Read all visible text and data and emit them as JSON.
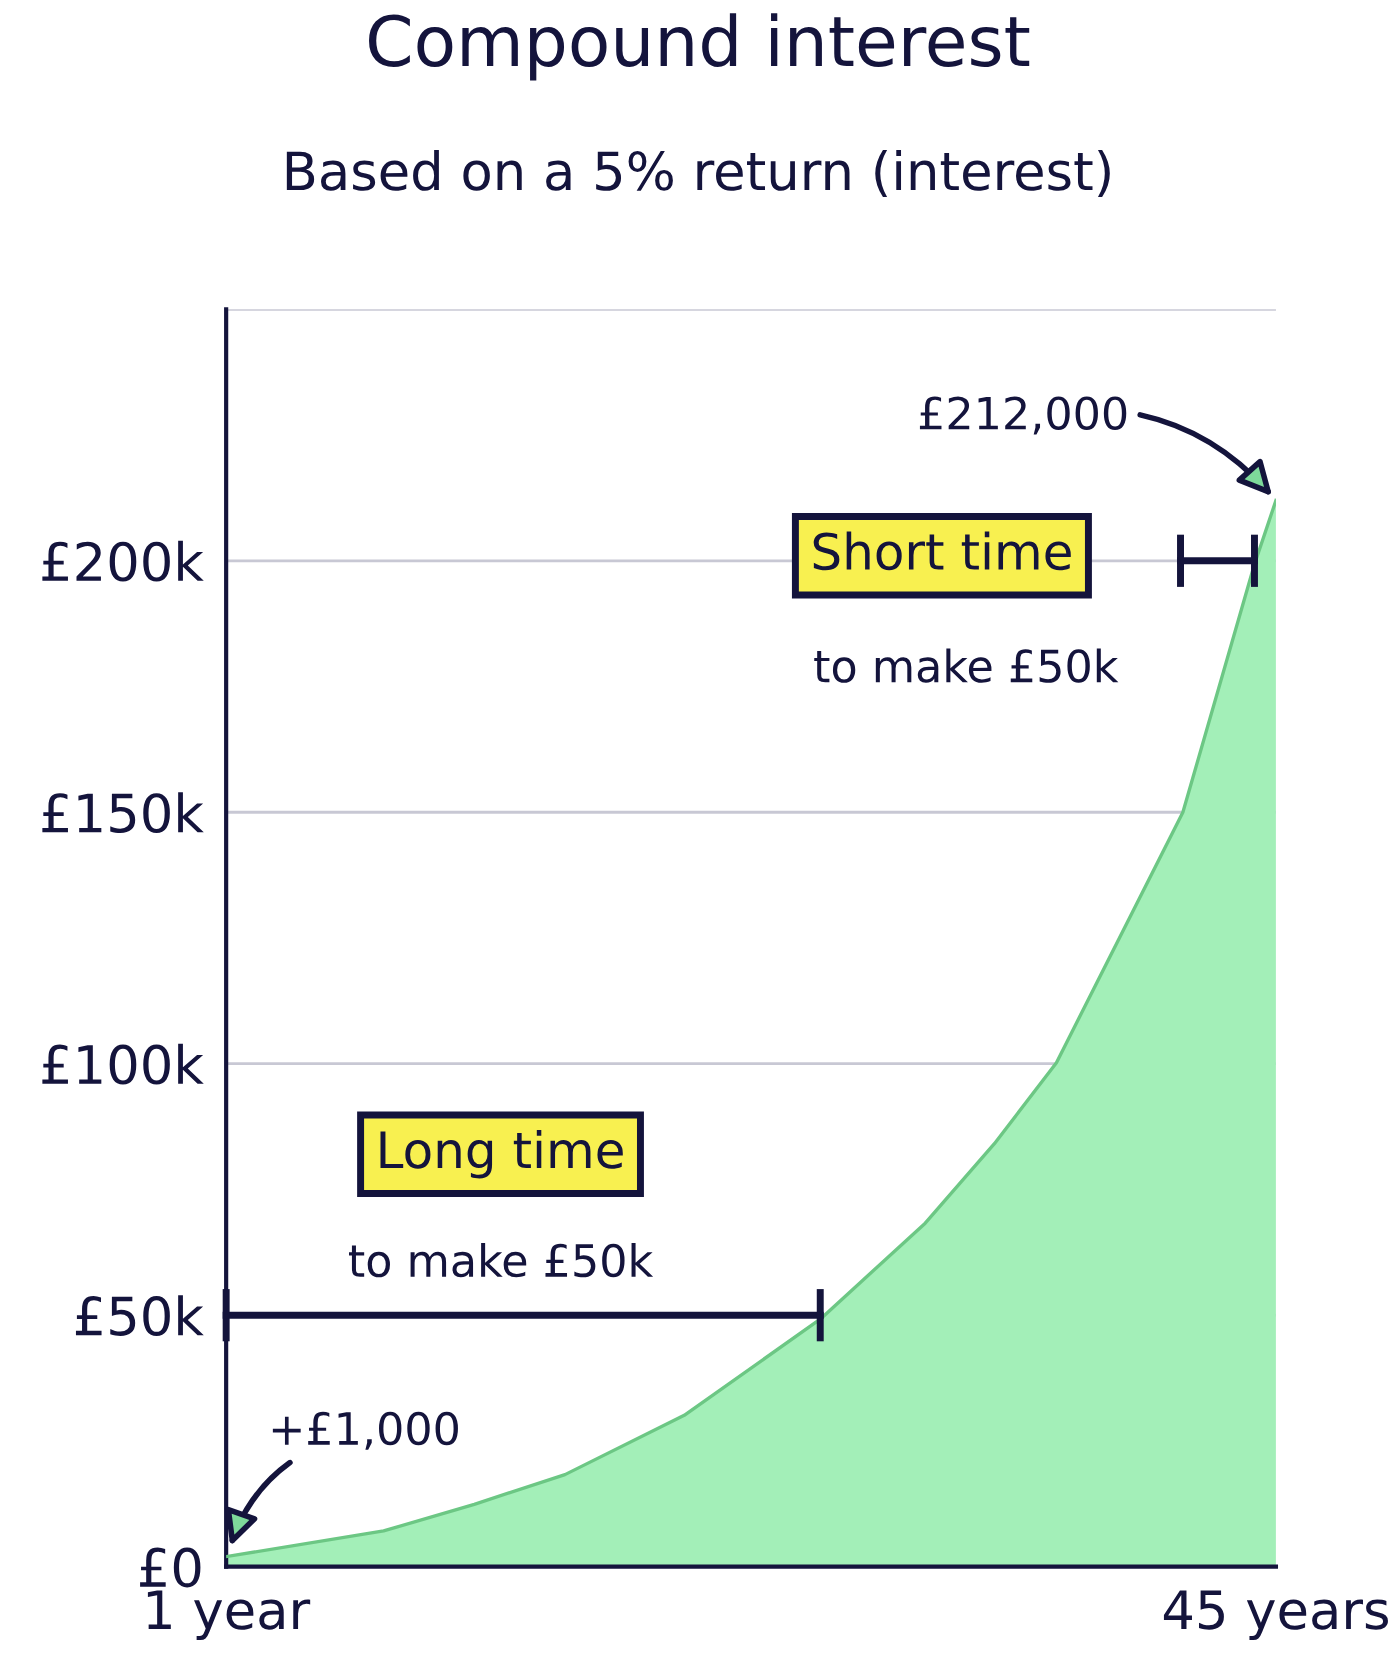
{
  "chart_data": {
    "type": "area",
    "title": "Compound interest",
    "subtitle": "Based on a 5% return (interest)",
    "x": [
      1,
      7.6,
      11.4,
      15.2,
      20.2,
      25.9,
      30.3,
      33.2,
      35.8,
      41.1,
      44.1,
      45
    ],
    "series": [
      {
        "color": "#a3efb8",
        "values": [
          2000,
          7100,
          12400,
          18300,
          30100,
          49200,
          68300,
          84100,
          100200,
          150000,
          199300,
          212000
        ]
      },
      {
        "type": "line",
        "color": "#14143c",
        "x": [
          1,
          25.9
        ],
        "values": [
          50000,
          50000
        ]
      },
      {
        "type": "line",
        "color": "#14143c",
        "x": [
          41.0,
          44.1
        ],
        "values": [
          200000,
          200000
        ]
      }
    ],
    "xlim": [
      1,
      45
    ],
    "xticks": [
      {
        "value": 1,
        "label": "1 year"
      },
      {
        "value": 45,
        "label": "45 years"
      }
    ],
    "ylim": [
      0,
      250000
    ],
    "yticks": [
      {
        "value": 0,
        "label": "£0"
      },
      {
        "value": 50000,
        "label": "£50k"
      },
      {
        "value": 100000,
        "label": "£100k"
      },
      {
        "value": 150000,
        "label": "£150k"
      },
      {
        "value": 200000,
        "label": "£200k"
      },
      {
        "value": 250000,
        "label": null
      }
    ],
    "grid": "y",
    "legend": false,
    "annotations": [
      "Long time",
      "to make £50k",
      "Short time",
      "to make £50k",
      "+£1,000",
      {
        "text": "£212,000",
        "x": 45,
        "y": 212000
      }
    ]
  }
}
